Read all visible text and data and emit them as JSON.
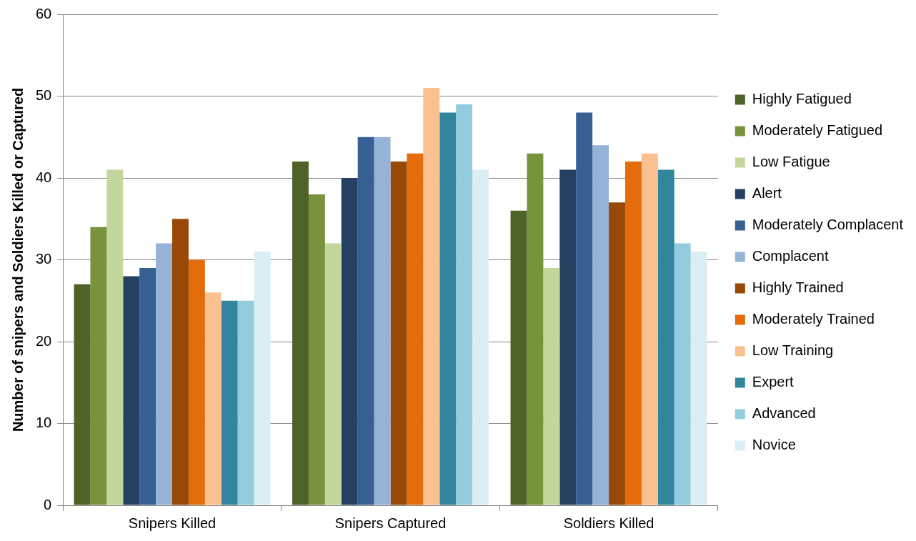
{
  "chart_data": {
    "type": "bar",
    "ylabel": "Number of snipers and Soldiers Killed or Captured",
    "categories": [
      "Snipers Killed",
      "Snipers Captured",
      "Soldiers Killed"
    ],
    "series": [
      {
        "name": "Highly Fatigued",
        "color": "#4f6228",
        "values": [
          27,
          42,
          36
        ]
      },
      {
        "name": "Moderately Fatigued",
        "color": "#77933c",
        "values": [
          34,
          38,
          43
        ]
      },
      {
        "name": "Low Fatigue",
        "color": "#c3d69b",
        "values": [
          41,
          32,
          29
        ]
      },
      {
        "name": "Alert",
        "color": "#254061",
        "values": [
          28,
          40,
          41
        ]
      },
      {
        "name": "Moderately Complacent",
        "color": "#376092",
        "values": [
          29,
          45,
          48
        ]
      },
      {
        "name": "Complacent",
        "color": "#95b3d7",
        "values": [
          32,
          45,
          44
        ]
      },
      {
        "name": "Highly Trained",
        "color": "#984807",
        "values": [
          35,
          42,
          37
        ]
      },
      {
        "name": "Moderately Trained",
        "color": "#e46c0a",
        "values": [
          30,
          43,
          42
        ]
      },
      {
        "name": "Low Training",
        "color": "#fac090",
        "values": [
          26,
          51,
          43
        ]
      },
      {
        "name": "Expert",
        "color": "#31859c",
        "values": [
          25,
          48,
          41
        ]
      },
      {
        "name": "Advanced",
        "color": "#93cddd",
        "values": [
          25,
          49,
          32
        ]
      },
      {
        "name": "Novice",
        "color": "#dbeef4",
        "values": [
          31,
          41,
          31
        ]
      }
    ],
    "ylim": [
      0,
      60
    ],
    "yticks": [
      0,
      10,
      20,
      30,
      40,
      50,
      60
    ],
    "grid": "y",
    "legend": "right"
  }
}
